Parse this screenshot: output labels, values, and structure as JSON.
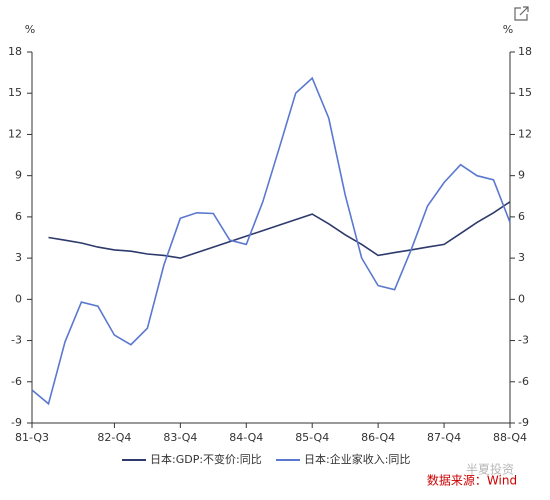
{
  "chart_data": {
    "type": "line",
    "y_unit": "%",
    "y2_unit": "%",
    "categories": [
      "81-Q3",
      null,
      null,
      null,
      null,
      "82-Q4",
      null,
      null,
      null,
      "83-Q4",
      null,
      null,
      null,
      "84-Q4",
      null,
      null,
      null,
      "85-Q4",
      null,
      null,
      null,
      "86-Q4",
      null,
      null,
      null,
      "87-Q4",
      null,
      null,
      null,
      "88-Q4"
    ],
    "series": [
      {
        "name": "日本:GDP:不变价:同比",
        "color": "#2d3a6b",
        "values": [
          null,
          4.5,
          4.3,
          4.1,
          3.8,
          3.6,
          3.5,
          3.3,
          3.2,
          3.0,
          3.4,
          3.8,
          4.2,
          4.6,
          5.0,
          5.4,
          5.8,
          6.2,
          5.5,
          4.7,
          4.0,
          3.2,
          3.4,
          3.6,
          3.8,
          4.0,
          4.8,
          5.6,
          6.3,
          7.1
        ]
      },
      {
        "name": "日本:企业家收入:同比",
        "color": "#5b78d0",
        "values": [
          -6.6,
          -7.6,
          -3.1,
          -0.2,
          -0.5,
          -2.6,
          -3.3,
          -2.1,
          2.5,
          5.9,
          6.3,
          6.25,
          4.3,
          4.0,
          7.1,
          11.0,
          15.0,
          16.1,
          13.2,
          7.6,
          3.0,
          1.0,
          0.7,
          3.6,
          6.8,
          8.5,
          9.8,
          9.0,
          8.7,
          5.6
        ]
      }
    ],
    "ylim": [
      -9,
      18
    ],
    "yticks": [
      -9,
      -6,
      -3,
      0,
      3,
      6,
      9,
      12,
      15,
      18
    ],
    "y2lim": [
      -9,
      18
    ],
    "y2ticks": [
      -9,
      -6,
      -3,
      0,
      3,
      6,
      9,
      12,
      15,
      18
    ],
    "grid": false,
    "legend": "bottom",
    "source": "数据来源：Wind",
    "watermark": "半夏投资"
  }
}
